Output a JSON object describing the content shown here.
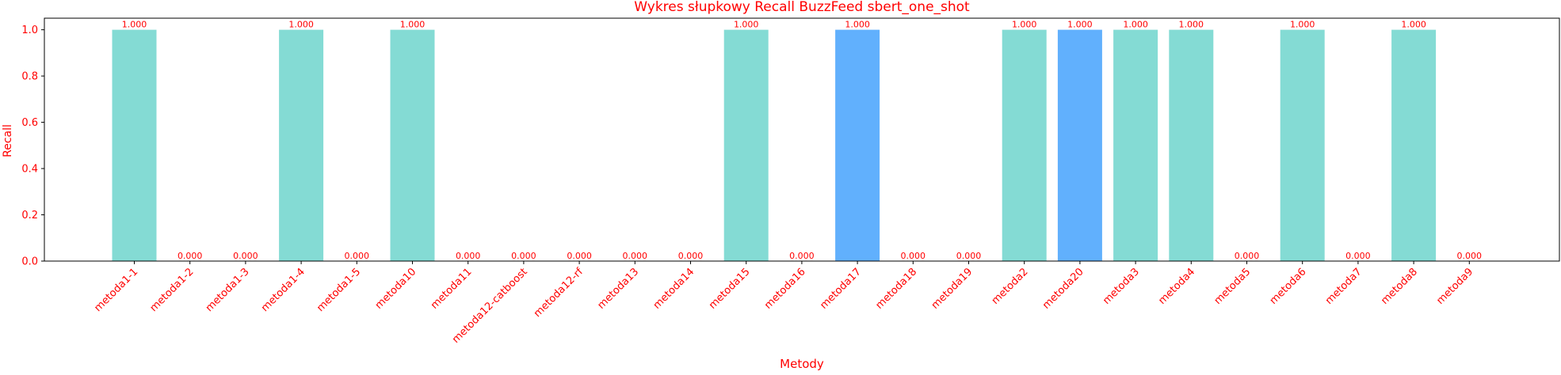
{
  "chart_data": {
    "type": "bar",
    "title": "Wykres słupkowy Recall BuzzFeed sbert_one_shot",
    "xlabel": "Metody",
    "ylabel": "Recall",
    "ylim": [
      0,
      1.05
    ],
    "yticks": [
      "0.0",
      "0.2",
      "0.4",
      "0.6",
      "0.8",
      "1.0"
    ],
    "categories": [
      "metoda1-1",
      "metoda1-2",
      "metoda1-3",
      "metoda1-4",
      "metoda1-5",
      "metoda10",
      "metoda11",
      "metoda12-catboost",
      "metoda12-rf",
      "metoda13",
      "metoda14",
      "metoda15",
      "metoda16",
      "metoda17",
      "metoda18",
      "metoda19",
      "metoda2",
      "metoda20",
      "metoda3",
      "metoda4",
      "metoda5",
      "metoda6",
      "metoda7",
      "metoda8",
      "metoda9"
    ],
    "values": [
      1,
      0,
      0,
      1,
      0,
      1,
      0,
      0,
      0,
      0,
      0,
      1,
      0,
      1,
      0,
      0,
      1,
      1,
      1,
      1,
      0,
      1,
      0,
      1,
      0
    ],
    "value_labels": [
      "1.000",
      "0.000",
      "0.000",
      "1.000",
      "0.000",
      "1.000",
      "0.000",
      "0.000",
      "0.000",
      "0.000",
      "0.000",
      "1.000",
      "0.000",
      "1.000",
      "0.000",
      "0.000",
      "1.000",
      "1.000",
      "1.000",
      "1.000",
      "0.000",
      "1.000",
      "0.000",
      "1.000",
      "0.000"
    ],
    "bar_colors": [
      "#84dbd4",
      "#84dbd4",
      "#84dbd4",
      "#84dbd4",
      "#84dbd4",
      "#84dbd4",
      "#84dbd4",
      "#84dbd4",
      "#84dbd4",
      "#84dbd4",
      "#84dbd4",
      "#84dbd4",
      "#84dbd4",
      "#61b0fd",
      "#84dbd4",
      "#84dbd4",
      "#84dbd4",
      "#61b0fd",
      "#84dbd4",
      "#84dbd4",
      "#84dbd4",
      "#84dbd4",
      "#84dbd4",
      "#84dbd4",
      "#84dbd4"
    ],
    "text_color": "#ff0000",
    "grid": false,
    "legend": "none"
  }
}
